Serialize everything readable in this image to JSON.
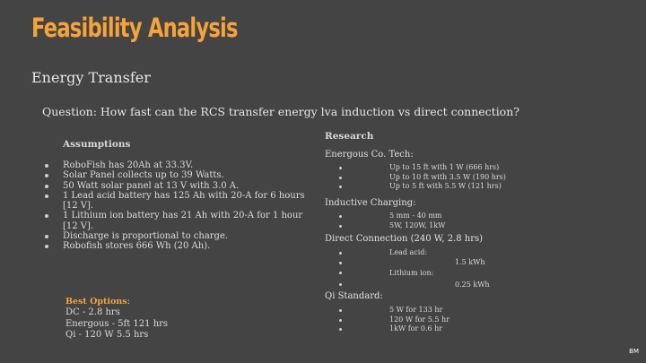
{
  "title": "Feasibility Analysis",
  "subtitle": "Energy Transfer",
  "question": "Question: How fast can the RCS transfer energy lva induction vs direct connection?",
  "assumptions": {
    "heading": "Assumptions",
    "items": [
      "RoboFish has 20Ah at 33.3V.",
      "Solar Panel collects up to 39 Watts.",
      "50 Watt solar panel at 13 V with 3.0 A.",
      "1 Lead acid battery has 125 Ah with 20-A for 6 hours [12 V].",
      "1 Lithium ion battery has 21 Ah with 20-A for 1 hour [12 V].",
      "Discharge is proportional to charge.",
      "Robofish stores 666 Wh (20 Ah)."
    ]
  },
  "best_options": {
    "label": "Best Options",
    "colon": ":",
    "lines": [
      "DC - 2.8 hrs",
      "Energous - 5ft 121 hrs",
      "Qi - 120 W 5.5 hrs"
    ]
  },
  "research": {
    "heading": "Research",
    "energous": {
      "label": "Energous Co. Tech:",
      "items": [
        "Up to 15 ft with 1 W (666 hrs)",
        "Up to 10 ft with 3.5 W (190 hrs)",
        "Up to 5 ft with 5.5 W (121 hrs)"
      ]
    },
    "inductive": {
      "label": "Inductive Charging:",
      "items": [
        "5 mm - 40 mm",
        "5W, 120W, 1kW"
      ]
    },
    "direct": {
      "label": "Direct Connection (240 W, 2.8 hrs)",
      "lead_label": "Lead acid:",
      "lead_value": "1.5 kWh",
      "lithium_label": "Lithium ion:",
      "lithium_value": "0.25 kWh"
    },
    "qi": {
      "label": "Qi Standard:",
      "items": [
        "5 W for 133 hr",
        "120 W for 5.5 hr",
        "1kW for 0.6 hr"
      ]
    }
  },
  "corner_mark": "BM",
  "colors": {
    "accent": "#f5a33a",
    "background": "#444444"
  }
}
